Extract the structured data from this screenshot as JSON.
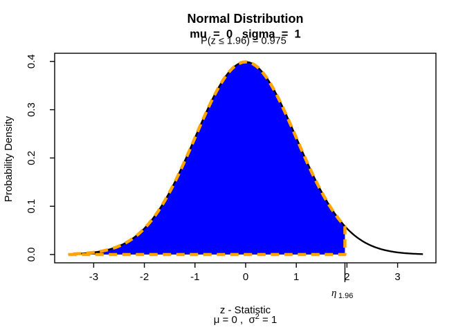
{
  "chart_data": {
    "type": "area",
    "title_line1": "Normal Distribution",
    "title_line2": "mu  =  0   sigma  =  1",
    "probability_label": "P(z ≤ 1.96) = 0.975",
    "xlabel_line1": "z - Statistic",
    "xlabel_line2": {
      "pre": "μ = 0 ,  σ",
      "sup": "2",
      "post": " = 1"
    },
    "ylabel": "Probability Density",
    "distribution": {
      "name": "normal",
      "mu": 0,
      "sigma": 1
    },
    "curve_x_range": [
      -3.5,
      3.5
    ],
    "shade_upper_limit": 1.96,
    "shaded_probability": 0.975,
    "xlim": [
      -3.5,
      3.5
    ],
    "ylim": [
      0,
      0.4
    ],
    "grid": false,
    "x_ticks": [
      {
        "value": -3,
        "label": "-3"
      },
      {
        "value": -2,
        "label": "-2"
      },
      {
        "value": -1,
        "label": "-1"
      },
      {
        "value": 0,
        "label": "0"
      },
      {
        "value": 1,
        "label": "1"
      },
      {
        "value": 2,
        "label": "2"
      },
      {
        "value": 3,
        "label": "3"
      }
    ],
    "y_ticks": [
      {
        "value": 0.0,
        "label": "0.0"
      },
      {
        "value": 0.1,
        "label": "0.1"
      },
      {
        "value": 0.2,
        "label": "0.2"
      },
      {
        "value": 0.3,
        "label": "0.3"
      },
      {
        "value": 0.4,
        "label": "0.4"
      }
    ],
    "annotation": {
      "symbol": "η",
      "subscript": "1.96",
      "x": 1.96
    },
    "colors": {
      "fill": "#0000FF",
      "dash_outline": "#FFA500",
      "curve": "#000000",
      "axis": "#000000",
      "text": "#000000",
      "background": "#FFFFFF"
    }
  }
}
